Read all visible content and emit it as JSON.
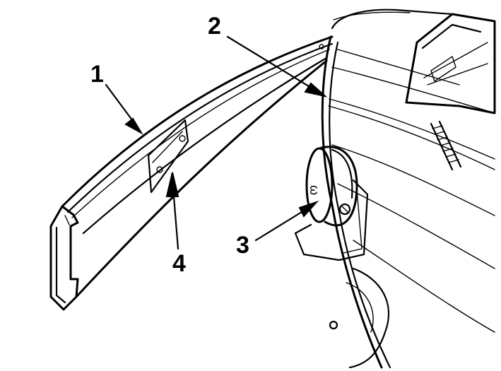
{
  "diagram": {
    "callouts": [
      {
        "id": "1",
        "label": "1",
        "target": "trim-strip"
      },
      {
        "id": "2",
        "label": "2",
        "target": "fender-body"
      },
      {
        "id": "3",
        "label": "3",
        "target": "light-housing"
      },
      {
        "id": "4",
        "label": "4",
        "target": "mounting-plate"
      }
    ],
    "colors": {
      "ink": "#000000",
      "paper": "#ffffff"
    }
  }
}
